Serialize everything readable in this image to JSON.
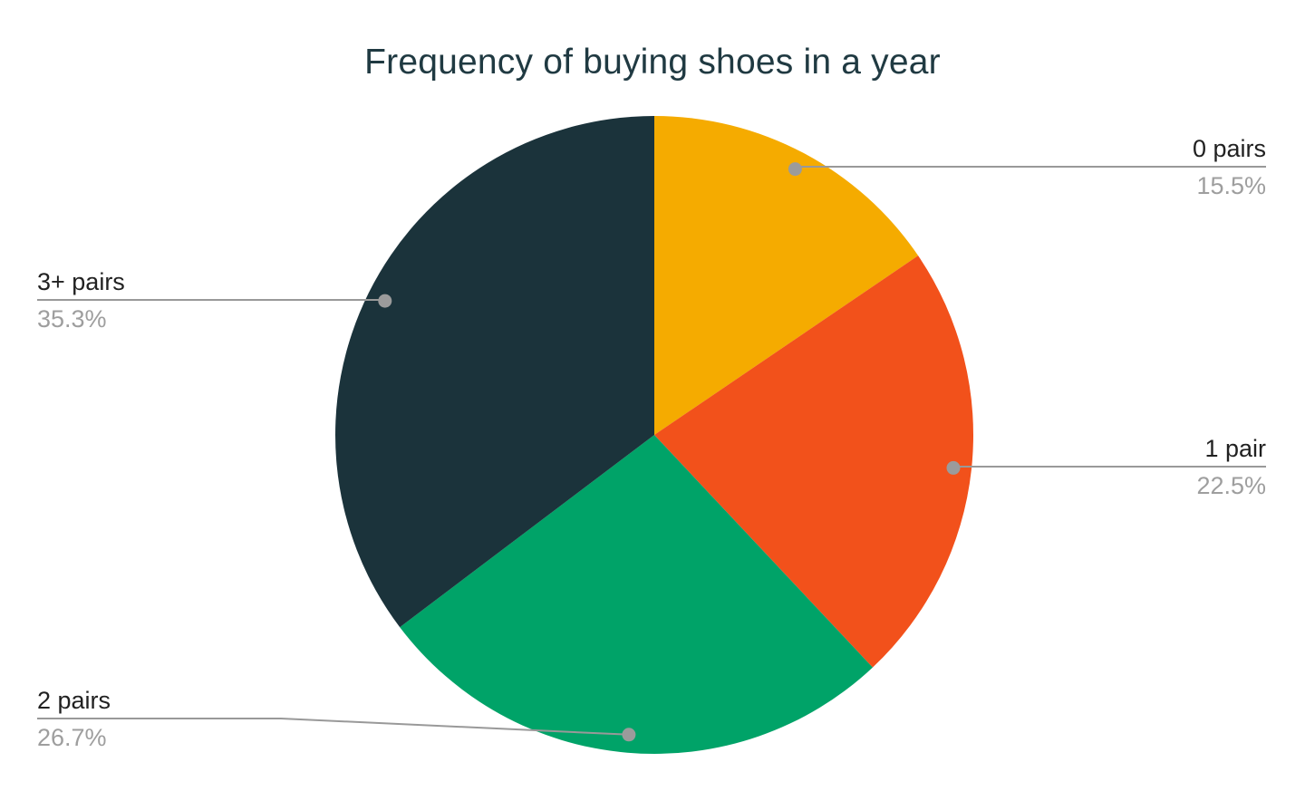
{
  "chart_data": {
    "type": "pie",
    "title": "Frequency of buying shoes in a year",
    "categories": [
      "0 pairs",
      "1 pair",
      "2 pairs",
      "3+ pairs"
    ],
    "values": [
      15.5,
      22.5,
      26.7,
      35.3
    ],
    "pct_labels": [
      "15.5%",
      "22.5%",
      "26.7%",
      "35.3%"
    ],
    "colors": [
      "#f5ab00",
      "#f2511b",
      "#00a368",
      "#1b333b"
    ],
    "start_angle": "12-o'clock",
    "direction": "clockwise",
    "legend_position": "none",
    "label_style": {
      "title_color": "#203a42",
      "name_color": "#212121",
      "pct_color": "#9e9e9e",
      "leader_line_color": "#999999",
      "leader_dot_color": "#9b9b9b"
    },
    "background": "#ffffff"
  }
}
